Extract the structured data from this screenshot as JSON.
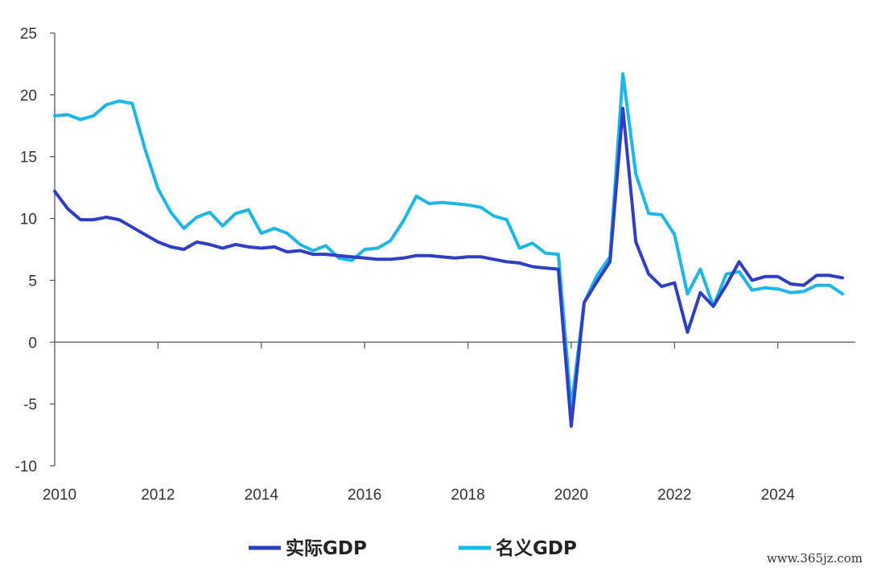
{
  "chart_data": {
    "type": "line",
    "title": "",
    "xlabel": "",
    "ylabel": "",
    "xlim": [
      2010,
      2025.5
    ],
    "ylim": [
      -10,
      25
    ],
    "yticks": [
      25,
      20,
      15,
      10,
      5,
      0,
      -5,
      -10
    ],
    "ytick_labels": [
      "25",
      "20",
      "15",
      "10",
      "5",
      "0",
      "-5",
      "-10"
    ],
    "xticks": [
      2010,
      2012,
      2014,
      2016,
      2018,
      2020,
      2022,
      2024
    ],
    "xtick_labels": [
      "2010",
      "2012",
      "2014",
      "2016",
      "2018",
      "2020",
      "2022",
      "2024"
    ],
    "grid": false,
    "legend_position": "bottom-center",
    "series": [
      {
        "name": "实际GDP",
        "color": "#2e3fc6",
        "x": [
          2010,
          2010.25,
          2010.5,
          2010.75,
          2011,
          2011.25,
          2011.5,
          2011.75,
          2012,
          2012.25,
          2012.5,
          2012.75,
          2013,
          2013.25,
          2013.5,
          2013.75,
          2014,
          2014.25,
          2014.5,
          2014.75,
          2015,
          2015.25,
          2015.5,
          2015.75,
          2016,
          2016.25,
          2016.5,
          2016.75,
          2017,
          2017.25,
          2017.5,
          2017.75,
          2018,
          2018.25,
          2018.5,
          2018.75,
          2019,
          2019.25,
          2019.5,
          2019.75,
          2020,
          2020.25,
          2020.5,
          2020.75,
          2021,
          2021.25,
          2021.5,
          2021.75,
          2022,
          2022.25,
          2022.5,
          2022.75,
          2023,
          2023.25,
          2023.5,
          2023.75,
          2024,
          2024.25,
          2024.5,
          2024.75,
          2025,
          2025.25
        ],
        "values": [
          12.2,
          10.8,
          9.9,
          9.9,
          10.1,
          9.9,
          9.3,
          8.7,
          8.1,
          7.7,
          7.5,
          8.1,
          7.9,
          7.6,
          7.9,
          7.7,
          7.6,
          7.7,
          7.3,
          7.4,
          7.1,
          7.1,
          7.0,
          6.9,
          6.8,
          6.7,
          6.7,
          6.8,
          7.0,
          7.0,
          6.9,
          6.8,
          6.9,
          6.9,
          6.7,
          6.5,
          6.4,
          6.1,
          6.0,
          5.9,
          -6.8,
          3.2,
          4.9,
          6.5,
          18.9,
          8.1,
          5.5,
          4.5,
          4.8,
          0.8,
          4.0,
          2.9,
          4.6,
          6.5,
          5.0,
          5.3,
          5.3,
          4.7,
          4.6,
          5.4,
          5.4,
          5.2
        ]
      },
      {
        "name": "名义GDP",
        "color": "#1cb6e8",
        "x": [
          2010,
          2010.25,
          2010.5,
          2010.75,
          2011,
          2011.25,
          2011.5,
          2011.75,
          2012,
          2012.25,
          2012.5,
          2012.75,
          2013,
          2013.25,
          2013.5,
          2013.75,
          2014,
          2014.25,
          2014.5,
          2014.75,
          2015,
          2015.25,
          2015.5,
          2015.75,
          2016,
          2016.25,
          2016.5,
          2016.75,
          2017,
          2017.25,
          2017.5,
          2017.75,
          2018,
          2018.25,
          2018.5,
          2018.75,
          2019,
          2019.25,
          2019.5,
          2019.75,
          2020,
          2020.25,
          2020.5,
          2020.75,
          2021,
          2021.25,
          2021.5,
          2021.75,
          2022,
          2022.25,
          2022.5,
          2022.75,
          2023,
          2023.25,
          2023.5,
          2023.75,
          2024,
          2024.25,
          2024.5,
          2024.75,
          2025,
          2025.25
        ],
        "values": [
          18.3,
          18.4,
          18.0,
          18.3,
          19.2,
          19.5,
          19.3,
          15.6,
          12.4,
          10.5,
          9.2,
          10.1,
          10.5,
          9.4,
          10.4,
          10.7,
          8.8,
          9.2,
          8.8,
          7.9,
          7.4,
          7.8,
          6.8,
          6.6,
          7.5,
          7.6,
          8.2,
          9.8,
          11.8,
          11.2,
          11.3,
          11.2,
          11.1,
          10.9,
          10.2,
          9.9,
          7.6,
          8.0,
          7.2,
          7.1,
          -5.3,
          3.2,
          5.4,
          6.9,
          21.7,
          13.6,
          10.4,
          10.3,
          8.7,
          3.9,
          5.9,
          2.9,
          5.5,
          5.7,
          4.2,
          4.4,
          4.3,
          4.0,
          4.1,
          4.6,
          4.6,
          3.9
        ]
      }
    ]
  },
  "watermark": "www.365jz.com"
}
